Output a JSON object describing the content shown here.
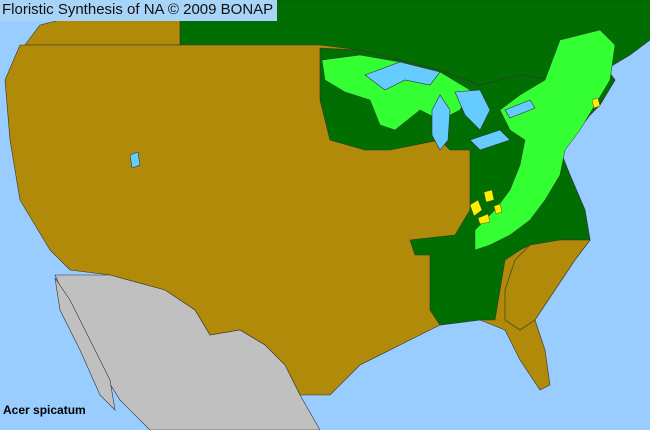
{
  "header": {
    "title": "Floristic Synthesis of NA © 2009 BONAP"
  },
  "map": {
    "species_label": "Acer spicatum",
    "colors": {
      "ocean": "#99ccff",
      "not_present_state": "#b08a08",
      "present_state": "#006e00",
      "present_county_native": "#33ff33",
      "rare_county": "#ffee00",
      "outside_area": "#c0c0c0",
      "lakes": "#66ccff",
      "borders": "#333333"
    }
  }
}
